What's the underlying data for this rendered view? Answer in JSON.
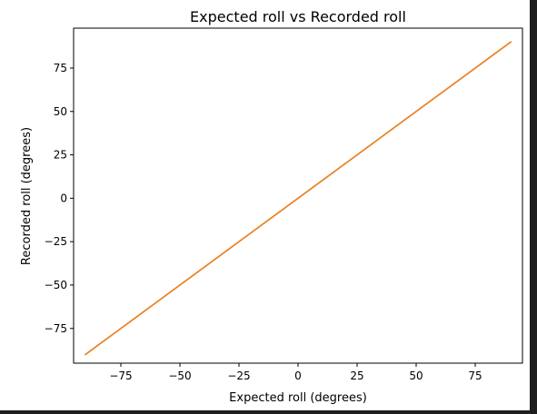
{
  "chart_data": {
    "type": "line",
    "title": "Expected roll vs Recorded roll",
    "xlabel": "Expected roll (degrees)",
    "ylabel": "Recorded roll (degrees)",
    "xlim": [
      -95,
      95
    ],
    "ylim": [
      -95,
      98
    ],
    "xticks": [
      -75,
      -50,
      -25,
      0,
      25,
      50,
      75
    ],
    "yticks": [
      -75,
      -50,
      -25,
      0,
      25,
      50,
      75
    ],
    "grid": false,
    "series": [
      {
        "color": "#1f77b4",
        "x": [
          -90,
          0,
          90
        ],
        "y": [
          -90,
          0,
          90
        ]
      },
      {
        "color": "#ff7f0e",
        "x": [
          -90,
          0,
          90
        ],
        "y": [
          -90,
          0,
          90
        ]
      }
    ]
  }
}
